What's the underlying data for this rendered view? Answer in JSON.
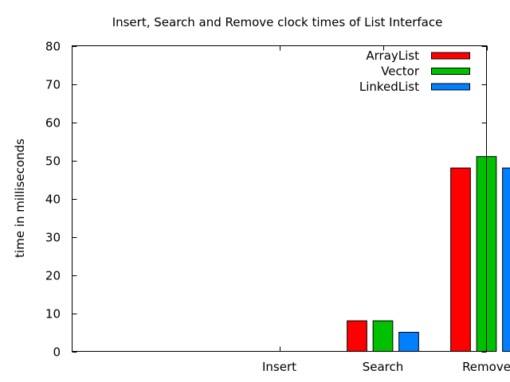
{
  "chart_data": {
    "type": "bar",
    "title": "Insert, Search and Remove clock times of List Interface",
    "xlabel": "",
    "ylabel": "time in milliseconds",
    "categories": [
      "Insert",
      "Search",
      "Remove"
    ],
    "series": [
      {
        "name": "ArrayList",
        "color": "#ff0000",
        "values": [
          0,
          8,
          48
        ]
      },
      {
        "name": "Vector",
        "color": "#00c000",
        "values": [
          0,
          8,
          51
        ]
      },
      {
        "name": "LinkedList",
        "color": "#0080ff",
        "values": [
          0,
          5,
          48
        ]
      }
    ],
    "ylim": [
      0,
      80
    ],
    "yticks": [
      0,
      10,
      20,
      30,
      40,
      50,
      60,
      70,
      80
    ],
    "grid": false,
    "legend_position": "top-right"
  }
}
